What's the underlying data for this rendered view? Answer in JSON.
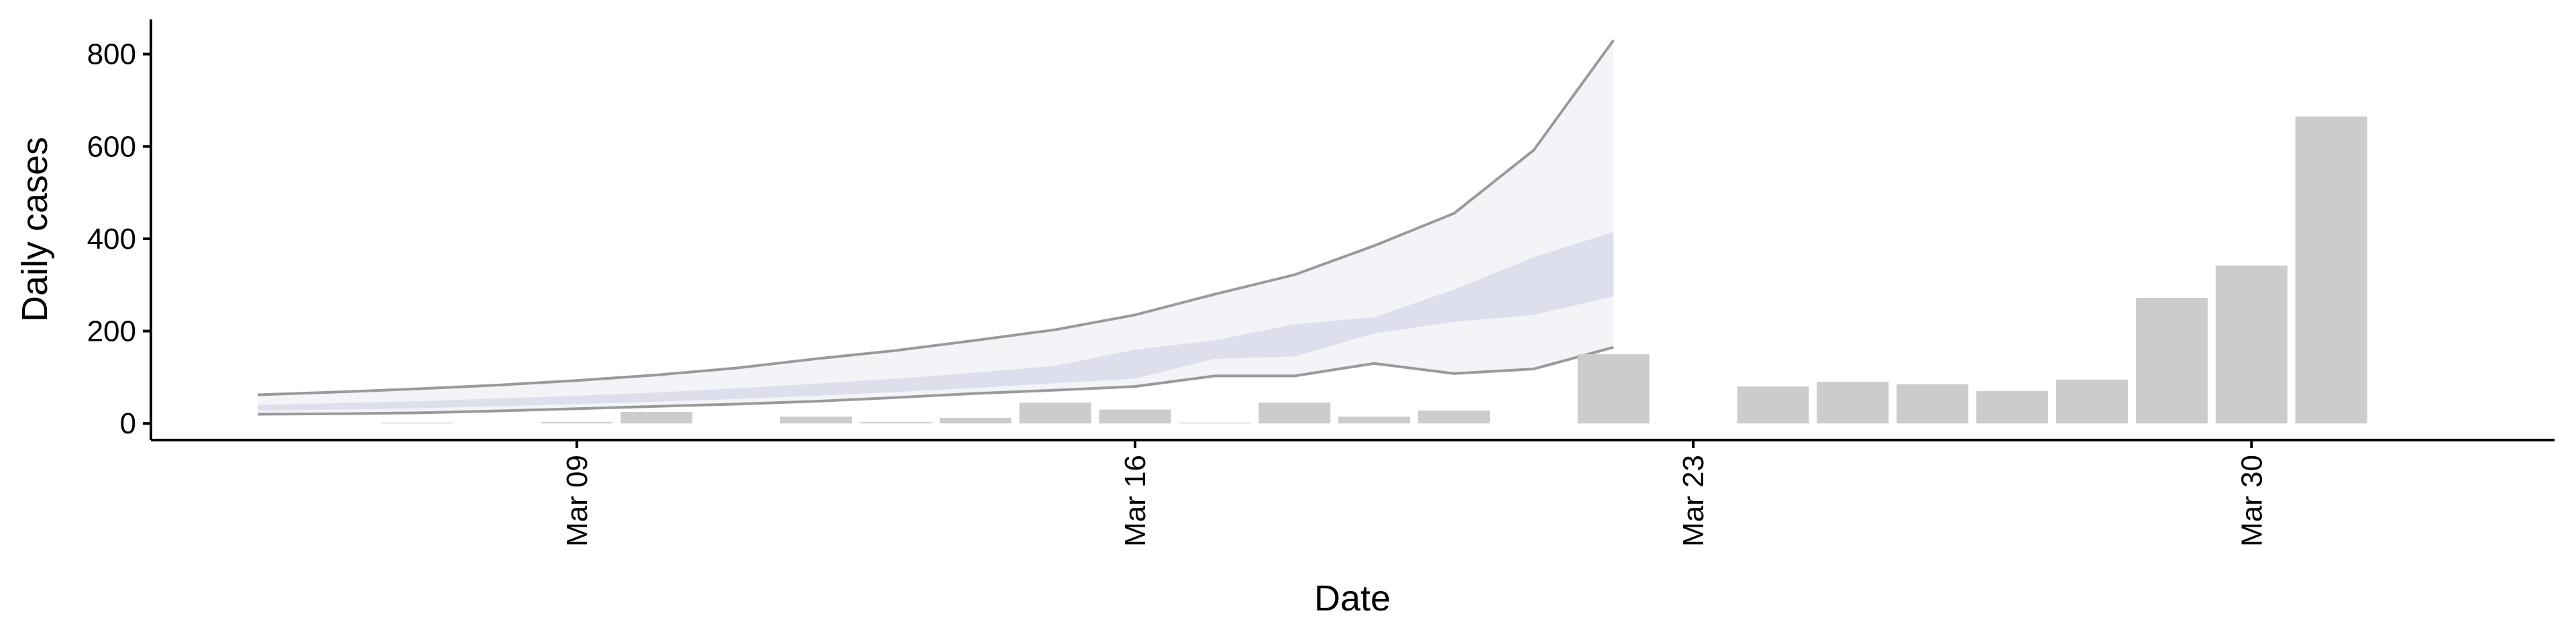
{
  "chart_data": {
    "type": "bar",
    "x_label": "Date",
    "y_label": "Daily cases",
    "x": [
      7,
      9,
      10,
      12,
      13,
      14,
      15,
      16,
      17,
      18,
      19,
      20,
      22,
      24,
      25,
      26,
      27,
      28,
      29,
      30,
      31
    ],
    "values": [
      2,
      3,
      25,
      15,
      3,
      12,
      45,
      30,
      2,
      45,
      15,
      28,
      150,
      80,
      90,
      85,
      70,
      95,
      272,
      342,
      665
    ],
    "color": "#cccccc",
    "bands": [
      {
        "x": [
          5,
          6,
          7,
          8,
          9,
          10,
          11,
          12,
          13,
          14,
          15,
          16,
          17,
          18,
          19,
          20,
          21,
          22
        ],
        "lower": [
          20,
          21,
          23,
          27,
          32,
          37,
          42,
          48,
          56,
          65,
          72,
          80,
          103,
          103,
          130,
          108,
          118,
          165
        ],
        "upper": [
          62,
          68,
          75,
          83,
          93,
          105,
          120,
          140,
          158,
          180,
          203,
          235,
          280,
          322,
          385,
          455,
          592,
          830
        ],
        "color": "#f3f4f8",
        "line_color": "#9a9a9a"
      },
      {
        "x": [
          5,
          6,
          7,
          8,
          9,
          10,
          11,
          12,
          13,
          14,
          15,
          16,
          17,
          18,
          19,
          20,
          21,
          22
        ],
        "lower": [
          28,
          30,
          33,
          37,
          42,
          47,
          53,
          60,
          68,
          77,
          87,
          97,
          140,
          145,
          195,
          220,
          235,
          275
        ],
        "upper": [
          40,
          44,
          48,
          54,
          60,
          67,
          76,
          86,
          97,
          110,
          125,
          160,
          180,
          215,
          230,
          290,
          360,
          415
        ],
        "color": "#dde0ec"
      }
    ],
    "xlim": [
      3.66,
      33.8
    ],
    "xticks": [
      {
        "value": 9,
        "label": "Mar 09"
      },
      {
        "value": 16,
        "label": "Mar 16"
      },
      {
        "value": 23,
        "label": "Mar 23"
      },
      {
        "value": 30,
        "label": "Mar 30"
      }
    ],
    "ylim": [
      -36,
      875
    ],
    "yticks": [
      0,
      200,
      400,
      600,
      800
    ]
  }
}
